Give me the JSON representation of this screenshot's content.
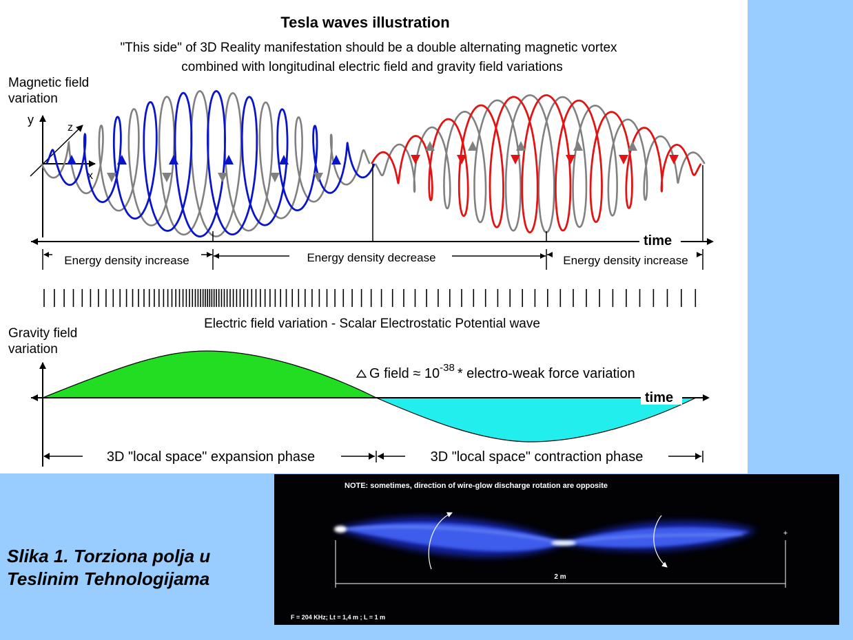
{
  "diagram": {
    "title": "Tesla waves illustration",
    "subtitle_line1": "\"This side\" of 3D Reality manifestation should be a double alternating magnetic vortex",
    "subtitle_line2": "combined with longitudinal electric field and gravity field variations",
    "magnetic_label_line1": "Magnetic field",
    "magnetic_label_line2": "variation",
    "axis_y": "y",
    "axis_z": "z",
    "axis_x": "x",
    "time_label": "time",
    "energy_segments": [
      "Energy density increase",
      "Energy density decrease",
      "Energy density increase"
    ],
    "electric_label": "Electric field variation - Scalar Electrostatic Potential wave",
    "gravity_label_line1": "Gravity field",
    "gravity_label_line2": "variation",
    "formula_prefix": "G field ≈ 10",
    "formula_exponent": "-38",
    "formula_suffix": "* electro-weak force variation",
    "phase_expansion": "3D \"local space\" expansion phase",
    "phase_contraction": "3D \"local space\" contraction phase",
    "colors": {
      "blue_wave": "#0a14c8",
      "gray_wave": "#808080",
      "red_wave": "#e01414",
      "expansion_fill": "#22dd22",
      "contraction_fill": "#22eeee"
    }
  },
  "caption": {
    "line1": "Slika 1. Torziona polja u",
    "line2": "Teslinim Tehnologijama"
  },
  "photo": {
    "note": "NOTE: sometimes, direction of wire-glow discharge rotation are opposite",
    "distance": "2 m",
    "params": "F = 204 KHz; Lt = 1,4 m ; L = 1 m",
    "plus_mark": "+"
  }
}
